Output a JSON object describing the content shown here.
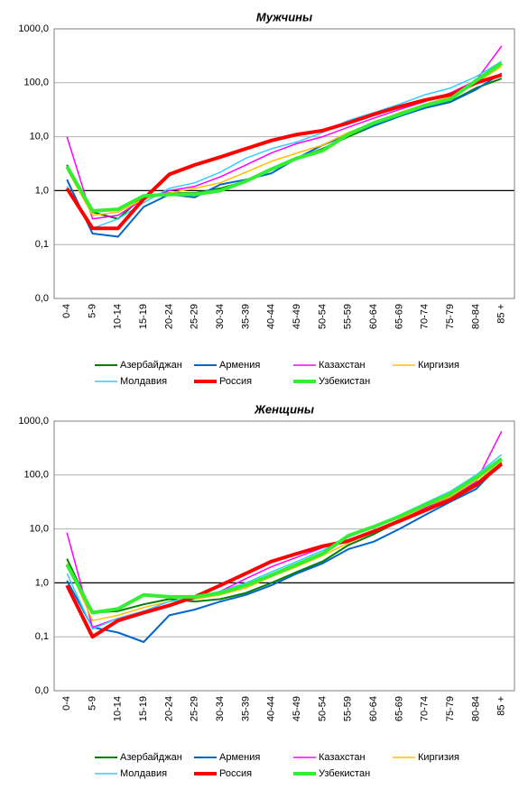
{
  "chart_data": [
    {
      "type": "line",
      "title": "Мужчины",
      "log_scale": true,
      "grid": true,
      "baseline": 1,
      "categories": [
        "0-4",
        "5-9",
        "10-14",
        "15-19",
        "20-24",
        "25-29",
        "30-34",
        "35-39",
        "40-44",
        "45-49",
        "50-54",
        "55-59",
        "60-64",
        "65-69",
        "70-74",
        "75-79",
        "80-84",
        "85 +"
      ],
      "ylim": [
        0.01,
        1000
      ],
      "yticks": [
        {
          "value": 0.01,
          "label": "0,0"
        },
        {
          "value": 0.1,
          "label": "0,1"
        },
        {
          "value": 1,
          "label": "1,0"
        },
        {
          "value": 10,
          "label": "10,0"
        },
        {
          "value": 100,
          "label": "100,0"
        },
        {
          "value": 1000,
          "label": "1000,0"
        }
      ],
      "series": [
        {
          "name": "Азербайджан",
          "color": "#008000",
          "width": 2,
          "values": [
            3,
            0.4,
            0.3,
            0.8,
            0.9,
            0.9,
            1.1,
            1.5,
            2.5,
            4,
            6,
            10,
            16,
            24,
            35,
            45,
            80,
            120
          ]
        },
        {
          "name": "Армения",
          "color": "#0066cc",
          "width": 2,
          "values": [
            1.6,
            0.16,
            0.14,
            0.5,
            0.85,
            0.75,
            1.3,
            1.6,
            2.1,
            4,
            7,
            11,
            16,
            24,
            34,
            44,
            75,
            150
          ]
        },
        {
          "name": "Казахстан",
          "color": "#ff00ff",
          "width": 1.5,
          "values": [
            10,
            0.3,
            0.35,
            0.7,
            1.0,
            1.2,
            1.8,
            3,
            5,
            7.5,
            10,
            15,
            22,
            32,
            45,
            65,
            110,
            480
          ]
        },
        {
          "name": "Киргизия",
          "color": "#ffc000",
          "width": 1.5,
          "values": [
            2.5,
            0.35,
            0.4,
            0.7,
            0.9,
            1.1,
            1.4,
            2.2,
            3.5,
            5,
            7,
            12,
            18,
            28,
            40,
            55,
            100,
            200
          ]
        },
        {
          "name": "Молдавия",
          "color": "#33ccff",
          "width": 1.5,
          "values": [
            1.2,
            0.2,
            0.3,
            0.6,
            1.1,
            1.4,
            2.2,
            4,
            6,
            8,
            12,
            20,
            28,
            40,
            60,
            80,
            130,
            250
          ]
        },
        {
          "name": "Россия",
          "color": "#ff0000",
          "width": 4,
          "values": [
            1.1,
            0.2,
            0.2,
            0.7,
            2,
            3,
            4.2,
            6,
            8.5,
            11,
            13,
            18,
            26,
            36,
            48,
            60,
            100,
            140
          ]
        },
        {
          "name": "Узбекистан",
          "color": "#33ee33",
          "width": 4,
          "values": [
            2.8,
            0.42,
            0.45,
            0.8,
            0.85,
            0.85,
            1,
            1.5,
            2.5,
            4,
            5.5,
            11,
            18,
            26,
            38,
            50,
            110,
            230
          ]
        }
      ]
    },
    {
      "type": "line",
      "title": "Женщины",
      "log_scale": true,
      "grid": true,
      "baseline": 1,
      "categories": [
        "0-4",
        "5-9",
        "10-14",
        "15-19",
        "20-24",
        "25-29",
        "30-34",
        "35-39",
        "40-44",
        "45-49",
        "50-54",
        "55-59",
        "60-64",
        "65-69",
        "70-74",
        "75-79",
        "80-84",
        "85 +"
      ],
      "ylim": [
        0.01,
        1000
      ],
      "yticks": [
        {
          "value": 0.01,
          "label": "0,0"
        },
        {
          "value": 0.1,
          "label": "0,1"
        },
        {
          "value": 1,
          "label": "1,0"
        },
        {
          "value": 10,
          "label": "10,0"
        },
        {
          "value": 100,
          "label": "100,0"
        },
        {
          "value": 1000,
          "label": "1000,0"
        }
      ],
      "series": [
        {
          "name": "Азербайджан",
          "color": "#008000",
          "width": 2,
          "values": [
            2.8,
            0.28,
            0.3,
            0.4,
            0.5,
            0.45,
            0.5,
            0.65,
            1.0,
            1.6,
            2.5,
            5,
            8,
            14,
            25,
            40,
            70,
            170
          ]
        },
        {
          "name": "Армения",
          "color": "#0066cc",
          "width": 2,
          "values": [
            1.1,
            0.15,
            0.12,
            0.08,
            0.25,
            0.32,
            0.45,
            0.6,
            0.9,
            1.5,
            2.3,
            4.2,
            5.8,
            10,
            18,
            32,
            55,
            170
          ]
        },
        {
          "name": "Казахстан",
          "color": "#ff00ff",
          "width": 1.5,
          "values": [
            8.5,
            0.15,
            0.22,
            0.3,
            0.4,
            0.5,
            0.7,
            1.2,
            2,
            3,
            4.5,
            6,
            9,
            15,
            25,
            40,
            75,
            650
          ]
        },
        {
          "name": "Киргизия",
          "color": "#ffc000",
          "width": 1.5,
          "values": [
            2.3,
            0.2,
            0.25,
            0.35,
            0.45,
            0.5,
            0.6,
            0.8,
            1.3,
            2,
            3.2,
            5.5,
            9,
            15,
            26,
            40,
            80,
            180
          ]
        },
        {
          "name": "Молдавия",
          "color": "#33ccff",
          "width": 1.5,
          "values": [
            1.5,
            0.14,
            0.22,
            0.3,
            0.45,
            0.55,
            0.7,
            1,
            1.6,
            2.5,
            4,
            7,
            11,
            18,
            30,
            50,
            100,
            240
          ]
        },
        {
          "name": "Россия",
          "color": "#ff0000",
          "width": 4,
          "values": [
            0.9,
            0.1,
            0.2,
            0.28,
            0.38,
            0.55,
            0.9,
            1.5,
            2.5,
            3.5,
            4.8,
            6,
            9,
            14,
            22,
            35,
            65,
            160
          ]
        },
        {
          "name": "Узбекистан",
          "color": "#33ee33",
          "width": 4,
          "values": [
            2.2,
            0.28,
            0.33,
            0.6,
            0.55,
            0.55,
            0.65,
            0.9,
            1.4,
            2.2,
            3.5,
            7.5,
            11,
            17,
            28,
            45,
            90,
            200
          ]
        }
      ]
    }
  ]
}
